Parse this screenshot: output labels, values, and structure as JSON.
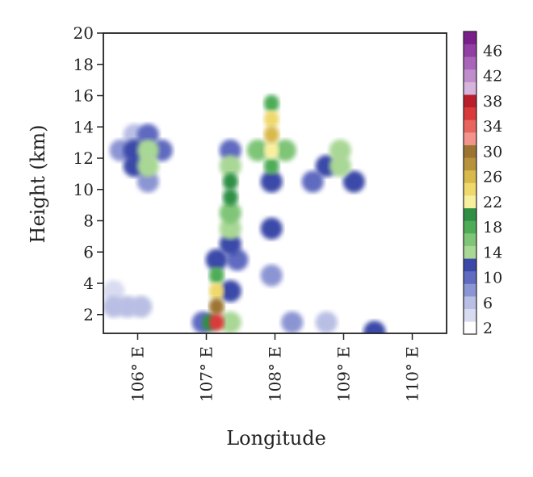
{
  "chart_data": {
    "type": "heatmap",
    "subtype": "filled-contour",
    "xlabel": "Longitude",
    "ylabel": "Height (km)",
    "xlim": [
      105.5,
      110.5
    ],
    "ylim": [
      0.8,
      20
    ],
    "x_ticks": [
      {
        "value": 106,
        "label": "106° E"
      },
      {
        "value": 107,
        "label": "107° E"
      },
      {
        "value": 108,
        "label": "108° E"
      },
      {
        "value": 109,
        "label": "109° E"
      },
      {
        "value": 110,
        "label": "110° E"
      }
    ],
    "y_ticks": [
      {
        "value": 2,
        "label": "2"
      },
      {
        "value": 4,
        "label": "4"
      },
      {
        "value": 6,
        "label": "6"
      },
      {
        "value": 8,
        "label": "8"
      },
      {
        "value": 10,
        "label": "10"
      },
      {
        "value": 12,
        "label": "12"
      },
      {
        "value": 14,
        "label": "14"
      },
      {
        "value": 16,
        "label": "16"
      },
      {
        "value": 18,
        "label": "18"
      },
      {
        "value": 20,
        "label": "20"
      }
    ],
    "colorbar": {
      "levels": [
        2,
        4,
        6,
        8,
        10,
        12,
        14,
        16,
        18,
        20,
        22,
        24,
        26,
        28,
        30,
        32,
        34,
        36,
        38,
        40,
        42,
        44,
        46,
        48
      ],
      "labeled": [
        2,
        6,
        10,
        14,
        18,
        22,
        26,
        30,
        34,
        38,
        42,
        46
      ],
      "colors": [
        "#ffffff",
        "#d9dcf0",
        "#b9bfe4",
        "#8c95d3",
        "#5f6ac0",
        "#3b48a8",
        "#a9d795",
        "#7fc577",
        "#4eac57",
        "#2f8f45",
        "#f8ef9e",
        "#efd86c",
        "#d9b94c",
        "#b8913b",
        "#9c7432",
        "#f2948c",
        "#e8645e",
        "#d93a3a",
        "#b81f2b",
        "#d7b4dc",
        "#bf8dcb",
        "#a965b9",
        "#923fa3",
        "#7a1f8a"
      ]
    },
    "cells": [
      {
        "x": 105.95,
        "y": 12.5,
        "v": 12
      },
      {
        "x": 106.15,
        "y": 12.5,
        "v": 14
      },
      {
        "x": 105.95,
        "y": 11.5,
        "v": 13
      },
      {
        "x": 106.15,
        "y": 11.5,
        "v": 15
      },
      {
        "x": 106.35,
        "y": 12.5,
        "v": 10
      },
      {
        "x": 105.75,
        "y": 12.5,
        "v": 8
      },
      {
        "x": 106.15,
        "y": 13.5,
        "v": 10
      },
      {
        "x": 106.15,
        "y": 10.5,
        "v": 8
      },
      {
        "x": 105.95,
        "y": 13.5,
        "v": 6
      },
      {
        "x": 105.65,
        "y": 2.5,
        "v": 6
      },
      {
        "x": 105.85,
        "y": 2.5,
        "v": 7
      },
      {
        "x": 106.05,
        "y": 2.5,
        "v": 6
      },
      {
        "x": 105.65,
        "y": 3.5,
        "v": 4
      },
      {
        "x": 107.15,
        "y": 1.5,
        "v": 36
      },
      {
        "x": 107.15,
        "y": 2.5,
        "v": 30
      },
      {
        "x": 107.15,
        "y": 3.5,
        "v": 24
      },
      {
        "x": 107.15,
        "y": 4.5,
        "v": 18
      },
      {
        "x": 107.05,
        "y": 1.5,
        "v": 20
      },
      {
        "x": 107.35,
        "y": 1.5,
        "v": 14
      },
      {
        "x": 106.95,
        "y": 1.5,
        "v": 10
      },
      {
        "x": 107.35,
        "y": 3.5,
        "v": 12
      },
      {
        "x": 107.15,
        "y": 5.5,
        "v": 12
      },
      {
        "x": 107.35,
        "y": 6.5,
        "v": 12
      },
      {
        "x": 107.35,
        "y": 7.5,
        "v": 14
      },
      {
        "x": 107.35,
        "y": 8.5,
        "v": 16
      },
      {
        "x": 107.35,
        "y": 9.5,
        "v": 20
      },
      {
        "x": 107.35,
        "y": 10.5,
        "v": 20
      },
      {
        "x": 107.35,
        "y": 11.5,
        "v": 14
      },
      {
        "x": 107.35,
        "y": 12.5,
        "v": 10
      },
      {
        "x": 107.45,
        "y": 5.5,
        "v": 10
      },
      {
        "x": 107.95,
        "y": 11.5,
        "v": 18
      },
      {
        "x": 107.95,
        "y": 12.5,
        "v": 22
      },
      {
        "x": 107.95,
        "y": 13.5,
        "v": 26
      },
      {
        "x": 107.95,
        "y": 14.5,
        "v": 24
      },
      {
        "x": 107.75,
        "y": 12.5,
        "v": 16
      },
      {
        "x": 108.15,
        "y": 12.5,
        "v": 16
      },
      {
        "x": 107.95,
        "y": 15.5,
        "v": 18
      },
      {
        "x": 107.95,
        "y": 10.5,
        "v": 12
      },
      {
        "x": 108.75,
        "y": 11.5,
        "v": 12
      },
      {
        "x": 108.95,
        "y": 12.5,
        "v": 14
      },
      {
        "x": 108.95,
        "y": 11.5,
        "v": 14
      },
      {
        "x": 109.15,
        "y": 10.5,
        "v": 12
      },
      {
        "x": 108.55,
        "y": 10.5,
        "v": 10
      },
      {
        "x": 107.95,
        "y": 7.5,
        "v": 12
      },
      {
        "x": 107.95,
        "y": 4.5,
        "v": 8
      },
      {
        "x": 108.25,
        "y": 1.5,
        "v": 8
      },
      {
        "x": 108.75,
        "y": 1.5,
        "v": 6
      },
      {
        "x": 109.45,
        "y": 0.9,
        "v": 12
      }
    ]
  }
}
